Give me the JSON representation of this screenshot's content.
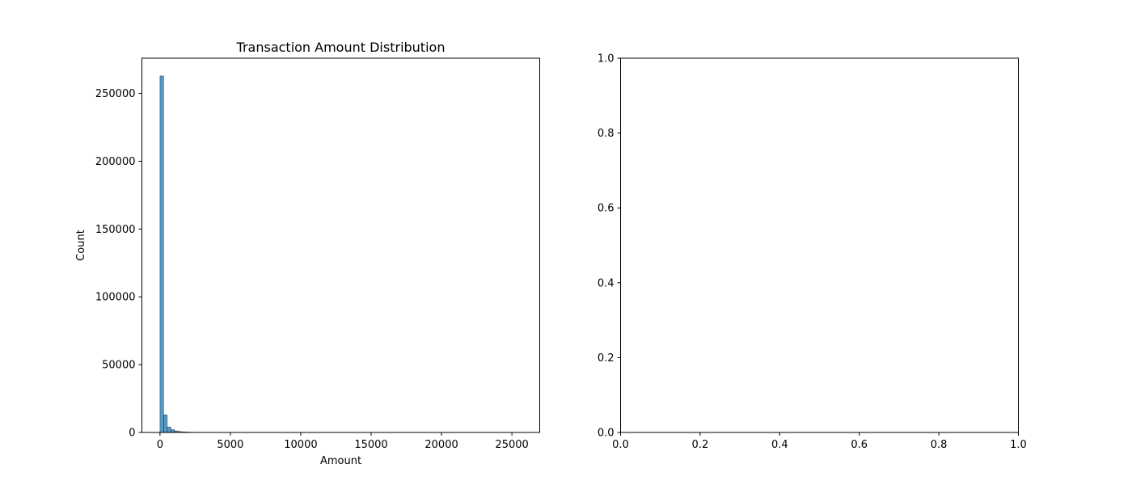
{
  "chart_data": [
    {
      "type": "bar",
      "title": "Transaction Amount Distribution",
      "xlabel": "Amount",
      "ylabel": "Count",
      "xlim": [
        -1284.2,
        26975.5
      ],
      "ylim": [
        0,
        275960
      ],
      "xticks": [
        0,
        5000,
        10000,
        15000,
        20000,
        25000
      ],
      "xtick_labels": [
        "0",
        "5000",
        "10000",
        "15000",
        "20000",
        "25000"
      ],
      "yticks": [
        0,
        50000,
        100000,
        150000,
        200000,
        250000
      ],
      "ytick_labels": [
        "0",
        "50000",
        "100000",
        "150000",
        "200000",
        "250000"
      ],
      "bin_width": 256.91,
      "bin_starts": [
        0,
        256.91,
        513.82,
        770.73,
        1027.64,
        1284.55,
        1541.46,
        1798.37,
        2055.28,
        2312.19,
        2569.1,
        2826.01,
        3082.92,
        3339.83,
        3596.74,
        3853.65,
        4110.56,
        4367.47,
        4624.38,
        4881.29
      ],
      "values": [
        262900,
        13000,
        4000,
        2100,
        1200,
        700,
        450,
        300,
        220,
        160,
        120,
        90,
        70,
        55,
        45,
        35,
        30,
        25,
        20,
        18
      ],
      "bar_color": "#1f77b4",
      "grid": false
    },
    {
      "type": "scatter",
      "title": "",
      "xlabel": "",
      "ylabel": "",
      "xlim": [
        0,
        1
      ],
      "ylim": [
        0,
        1
      ],
      "xticks": [
        0,
        0.2,
        0.4,
        0.6,
        0.8,
        1
      ],
      "xtick_labels": [
        "0.0",
        "0.2",
        "0.4",
        "0.6",
        "0.8",
        "1.0"
      ],
      "yticks": [
        0,
        0.2,
        0.4,
        0.6,
        0.8,
        1
      ],
      "ytick_labels": [
        "0.0",
        "0.2",
        "0.4",
        "0.6",
        "0.8",
        "1.0"
      ],
      "x": [],
      "y": [],
      "grid": false
    }
  ]
}
